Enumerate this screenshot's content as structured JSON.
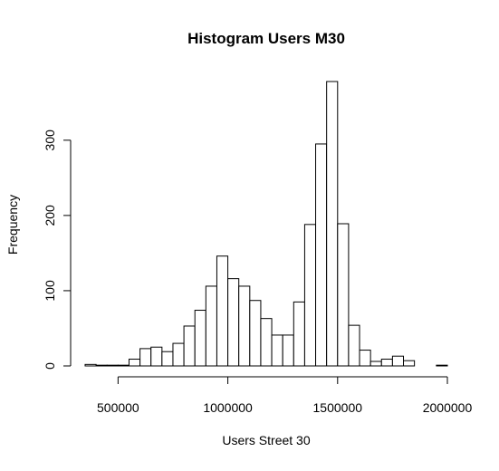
{
  "chart_data": {
    "type": "bar",
    "title": "Histogram Users M30",
    "xlabel": "Users Street 30",
    "ylabel": "Frequency",
    "bin_start": 350000,
    "bin_width": 50000,
    "values": [
      2,
      1,
      1,
      1,
      9,
      23,
      25,
      19,
      30,
      53,
      74,
      106,
      146,
      116,
      106,
      87,
      63,
      41,
      41,
      85,
      188,
      295,
      378,
      189,
      54,
      21,
      6,
      9,
      13,
      7,
      0,
      0,
      1
    ],
    "xlim": [
      350000,
      2000000
    ],
    "ylim": [
      0,
      378
    ],
    "x_ticks": [
      500000,
      1000000,
      1500000,
      2000000
    ],
    "x_tick_labels": [
      "500000",
      "1000000",
      "1500000",
      "2000000"
    ],
    "y_ticks": [
      0,
      100,
      200,
      300
    ],
    "y_tick_labels": [
      "0",
      "100",
      "200",
      "300"
    ],
    "grid": false,
    "bar_fill": "#ffffff",
    "bar_stroke": "#000000"
  }
}
